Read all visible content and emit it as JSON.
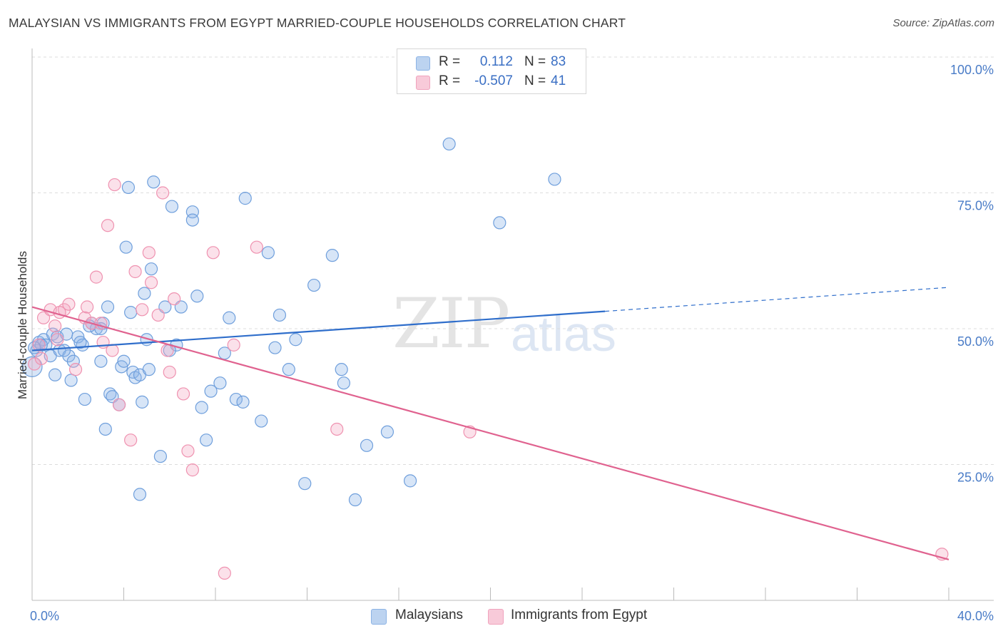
{
  "header": {
    "title": "MALAYSIAN VS IMMIGRANTS FROM EGYPT MARRIED-COUPLE HOUSEHOLDS CORRELATION CHART",
    "source": "Source: ZipAtlas.com"
  },
  "watermark": {
    "zip": "ZIP",
    "atlas": "atlas"
  },
  "legend": {
    "rows": [
      {
        "r_label": "R =",
        "r_value": "0.112",
        "n_label": "N =",
        "n_value": "83",
        "color": "#a9c6ec"
      },
      {
        "r_label": "R =",
        "r_value": "-0.507",
        "n_label": "N =",
        "n_value": "41",
        "color": "#f5b8cb"
      }
    ]
  },
  "bottom_legend": [
    {
      "label": "Malaysians",
      "color": "#a9c6ec"
    },
    {
      "label": "Immigrants from Egypt",
      "color": "#f5b8cb"
    }
  ],
  "chart_data": {
    "type": "scatter",
    "title": "MALAYSIAN VS IMMIGRANTS FROM EGYPT MARRIED-COUPLE HOUSEHOLDS CORRELATION CHART",
    "xlabel": "",
    "ylabel": "Married-couple Households",
    "xlim": [
      0,
      40
    ],
    "ylim": [
      0,
      100
    ],
    "x_tick_labels": [
      {
        "value": 0,
        "label": "0.0%"
      },
      {
        "value": 40,
        "label": "40.0%"
      }
    ],
    "y_tick_labels": [
      {
        "value": 25,
        "label": "25.0%"
      },
      {
        "value": 50,
        "label": "50.0%"
      },
      {
        "value": 75,
        "label": "75.0%"
      },
      {
        "value": 100,
        "label": "100.0%"
      }
    ],
    "x_minor_ticks": [
      0,
      4,
      8,
      12,
      16,
      20,
      24,
      28,
      32,
      36,
      40
    ],
    "grid": "dashed horizontal",
    "series": [
      {
        "name": "Malaysians",
        "color": "#6f9fdc",
        "fill": "rgba(140,180,232,0.35)",
        "trend": {
          "x0": 0,
          "y0": 46.0,
          "x1": 25,
          "y1": 53.2,
          "dashed_to_x": 40,
          "dashed_to_y": 57.6,
          "color": "#2f6ecb"
        },
        "points": [
          [
            0.2,
            46.0
          ],
          [
            0.3,
            47.5
          ],
          [
            0.5,
            48.0
          ],
          [
            0.6,
            47.0
          ],
          [
            0.8,
            45.0
          ],
          [
            0.9,
            49.0
          ],
          [
            1.0,
            41.5
          ],
          [
            1.1,
            48.5
          ],
          [
            1.2,
            46.0
          ],
          [
            1.5,
            49.0
          ],
          [
            1.6,
            45.0
          ],
          [
            1.7,
            40.5
          ],
          [
            2.0,
            48.5
          ],
          [
            2.2,
            47.0
          ],
          [
            2.3,
            37.0
          ],
          [
            2.6,
            51.0
          ],
          [
            2.8,
            50.0
          ],
          [
            3.0,
            44.0
          ],
          [
            3.1,
            51.0
          ],
          [
            3.2,
            31.5
          ],
          [
            3.3,
            54.0
          ],
          [
            3.4,
            38.0
          ],
          [
            3.5,
            37.5
          ],
          [
            3.8,
            36.0
          ],
          [
            3.9,
            43.0
          ],
          [
            4.0,
            44.0
          ],
          [
            4.1,
            65.0
          ],
          [
            4.2,
            76.0
          ],
          [
            4.3,
            53.0
          ],
          [
            4.4,
            42.0
          ],
          [
            4.5,
            41.0
          ],
          [
            4.7,
            41.5
          ],
          [
            4.8,
            36.5
          ],
          [
            4.9,
            56.5
          ],
          [
            5.0,
            48.0
          ],
          [
            5.1,
            42.5
          ],
          [
            5.2,
            61.0
          ],
          [
            5.3,
            77.0
          ],
          [
            5.6,
            26.5
          ],
          [
            5.8,
            54.0
          ],
          [
            6.1,
            72.5
          ],
          [
            6.3,
            47.0
          ],
          [
            6.5,
            54.0
          ],
          [
            7.0,
            71.5
          ],
          [
            7.2,
            56.0
          ],
          [
            7.4,
            35.5
          ],
          [
            7.6,
            29.5
          ],
          [
            7.8,
            38.5
          ],
          [
            7.0,
            70.0
          ],
          [
            8.2,
            40.0
          ],
          [
            8.4,
            45.5
          ],
          [
            8.6,
            52.0
          ],
          [
            8.9,
            37.0
          ],
          [
            9.2,
            36.5
          ],
          [
            9.3,
            74.0
          ],
          [
            10.0,
            33.0
          ],
          [
            10.3,
            64.0
          ],
          [
            10.8,
            52.5
          ],
          [
            10.6,
            46.5
          ],
          [
            11.2,
            42.5
          ],
          [
            11.5,
            48.0
          ],
          [
            4.7,
            19.5
          ],
          [
            11.9,
            21.5
          ],
          [
            12.3,
            58.0
          ],
          [
            13.1,
            63.5
          ],
          [
            13.5,
            42.5
          ],
          [
            13.6,
            40.0
          ],
          [
            14.1,
            18.5
          ],
          [
            14.6,
            28.5
          ],
          [
            15.5,
            31.0
          ],
          [
            16.5,
            22.0
          ],
          [
            18.2,
            84.0
          ],
          [
            20.4,
            69.5
          ],
          [
            22.8,
            77.5
          ],
          [
            3.0,
            50.0
          ],
          [
            2.5,
            50.5
          ],
          [
            1.8,
            44.0
          ],
          [
            0.4,
            47.0
          ],
          [
            6.0,
            46.0
          ],
          [
            0.1,
            46.5
          ],
          [
            1.4,
            46.0
          ],
          [
            2.1,
            47.5
          ],
          [
            0.0,
            43.0
          ]
        ]
      },
      {
        "name": "Immigrants from Egypt",
        "color": "#ef92b0",
        "fill": "rgba(244,170,196,0.35)",
        "trend": {
          "x0": 0,
          "y0": 54.0,
          "x1": 40,
          "y1": 7.5,
          "color": "#e0628f"
        },
        "points": [
          [
            0.1,
            43.5
          ],
          [
            0.4,
            44.5
          ],
          [
            0.5,
            52.0
          ],
          [
            0.8,
            53.5
          ],
          [
            1.0,
            50.5
          ],
          [
            1.1,
            48.0
          ],
          [
            1.4,
            53.5
          ],
          [
            1.6,
            54.5
          ],
          [
            1.9,
            42.5
          ],
          [
            2.3,
            52.0
          ],
          [
            2.6,
            51.0
          ],
          [
            2.8,
            59.5
          ],
          [
            3.0,
            51.0
          ],
          [
            3.1,
            47.5
          ],
          [
            3.3,
            69.0
          ],
          [
            3.5,
            46.0
          ],
          [
            3.6,
            76.5
          ],
          [
            3.8,
            36.0
          ],
          [
            4.3,
            29.5
          ],
          [
            4.5,
            60.5
          ],
          [
            4.8,
            53.5
          ],
          [
            5.1,
            64.0
          ],
          [
            5.2,
            58.5
          ],
          [
            5.5,
            52.5
          ],
          [
            5.7,
            75.0
          ],
          [
            5.9,
            46.0
          ],
          [
            6.0,
            42.0
          ],
          [
            6.2,
            55.5
          ],
          [
            6.6,
            38.0
          ],
          [
            6.8,
            27.5
          ],
          [
            7.0,
            24.0
          ],
          [
            7.9,
            64.0
          ],
          [
            8.8,
            47.0
          ],
          [
            9.8,
            65.0
          ],
          [
            13.3,
            31.5
          ],
          [
            19.1,
            31.0
          ],
          [
            39.7,
            8.5
          ],
          [
            8.4,
            5.0
          ],
          [
            2.4,
            54.0
          ],
          [
            1.2,
            53.0
          ],
          [
            0.3,
            47.0
          ]
        ]
      }
    ]
  }
}
